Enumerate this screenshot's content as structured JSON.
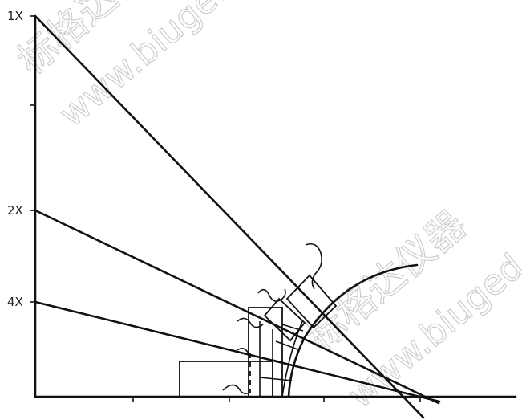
{
  "axis_labels": {
    "label_1x": "1X",
    "label_2x": "2X",
    "label_4x": "4X"
  },
  "watermark": {
    "cn": "标格达仪器",
    "url": "www.biuged"
  }
}
